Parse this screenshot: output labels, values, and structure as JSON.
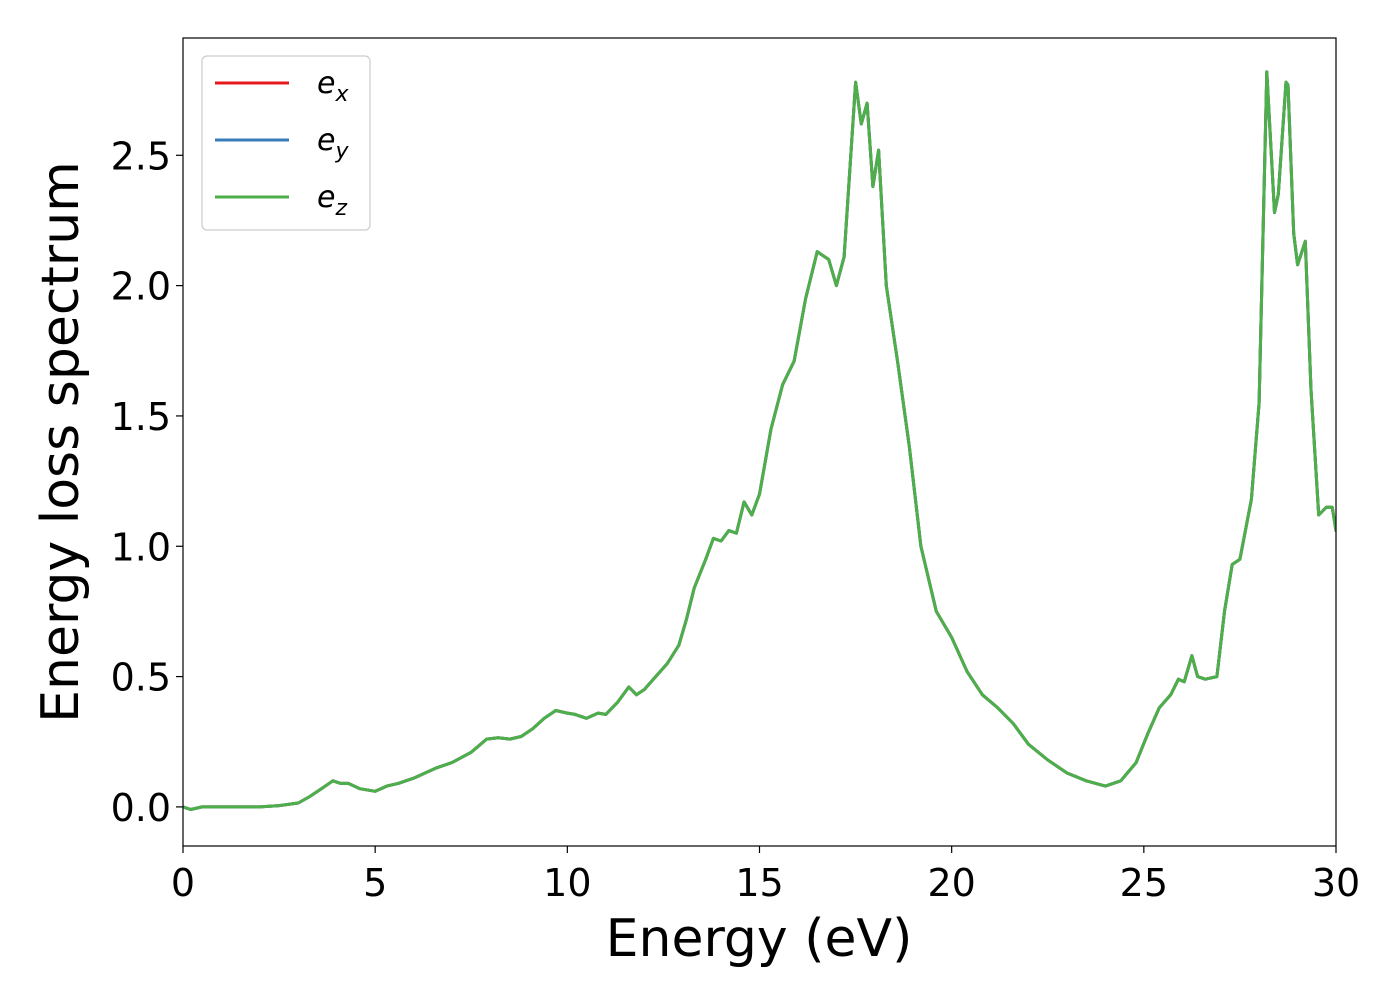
{
  "chart_data": {
    "type": "line",
    "title": "",
    "xlabel": "Energy (eV)",
    "ylabel": "Energy loss spectrum",
    "xlim": [
      0,
      30
    ],
    "ylim": [
      -0.15,
      2.95
    ],
    "xticks": [
      "0",
      "5",
      "10",
      "15",
      "20",
      "25",
      "30"
    ],
    "yticks": [
      "0.0",
      "0.5",
      "1.0",
      "1.5",
      "2.0",
      "2.5"
    ],
    "grid": false,
    "legend_position": "top-left",
    "x": [
      0,
      0.2,
      0.5,
      1,
      2,
      2.5,
      3,
      3.3,
      3.6,
      3.9,
      4.1,
      4.3,
      4.6,
      5,
      5.3,
      5.6,
      6,
      6.3,
      6.6,
      7,
      7.5,
      7.9,
      8.2,
      8.5,
      8.8,
      9.1,
      9.4,
      9.7,
      10,
      10.2,
      10.5,
      10.8,
      11,
      11.3,
      11.6,
      11.8,
      12,
      12.3,
      12.6,
      12.9,
      13.1,
      13.3,
      13.6,
      13.8,
      14,
      14.2,
      14.4,
      14.6,
      14.8,
      15,
      15.3,
      15.6,
      15.9,
      16.2,
      16.5,
      16.8,
      17,
      17.2,
      17.5,
      17.65,
      17.8,
      17.95,
      18.1,
      18.3,
      18.6,
      18.9,
      19.2,
      19.6,
      20,
      20.4,
      20.8,
      21.2,
      21.6,
      22,
      22.5,
      23,
      23.5,
      24,
      24.4,
      24.8,
      25.1,
      25.4,
      25.7,
      25.9,
      26.05,
      26.25,
      26.4,
      26.6,
      26.9,
      27.1,
      27.3,
      27.5,
      27.8,
      28.0,
      28.2,
      28.4,
      28.5,
      28.7,
      28.75,
      28.9,
      29.0,
      29.2,
      29.35,
      29.55,
      29.75,
      29.9,
      30
    ],
    "series": [
      {
        "name": "e_x",
        "label_base": "e",
        "label_sub": "x",
        "color": "#e41a1c",
        "values": [
          0,
          -0.01,
          0,
          0,
          0,
          0.005,
          0.015,
          0.04,
          0.07,
          0.1,
          0.09,
          0.09,
          0.07,
          0.06,
          0.08,
          0.09,
          0.11,
          0.13,
          0.15,
          0.17,
          0.21,
          0.26,
          0.265,
          0.26,
          0.27,
          0.3,
          0.34,
          0.37,
          0.36,
          0.355,
          0.34,
          0.36,
          0.355,
          0.4,
          0.46,
          0.43,
          0.45,
          0.5,
          0.55,
          0.62,
          0.72,
          0.84,
          0.95,
          1.03,
          1.02,
          1.06,
          1.05,
          1.17,
          1.12,
          1.2,
          1.45,
          1.62,
          1.71,
          1.95,
          2.13,
          2.1,
          2.0,
          2.11,
          2.78,
          2.62,
          2.7,
          2.38,
          2.52,
          2.0,
          1.7,
          1.38,
          1.0,
          0.75,
          0.65,
          0.52,
          0.43,
          0.38,
          0.32,
          0.24,
          0.18,
          0.13,
          0.1,
          0.08,
          0.1,
          0.17,
          0.28,
          0.38,
          0.43,
          0.49,
          0.48,
          0.58,
          0.5,
          0.49,
          0.5,
          0.75,
          0.93,
          0.95,
          1.18,
          1.55,
          2.82,
          2.28,
          2.35,
          2.78,
          2.77,
          2.2,
          2.08,
          2.17,
          1.6,
          1.12,
          1.15,
          1.15,
          1.06
        ]
      },
      {
        "name": "e_y",
        "label_base": "e",
        "label_sub": "y",
        "color": "#377eb8",
        "values": [
          0,
          -0.01,
          0,
          0,
          0,
          0.005,
          0.015,
          0.04,
          0.07,
          0.1,
          0.09,
          0.09,
          0.07,
          0.06,
          0.08,
          0.09,
          0.11,
          0.13,
          0.15,
          0.17,
          0.21,
          0.26,
          0.265,
          0.26,
          0.27,
          0.3,
          0.34,
          0.37,
          0.36,
          0.355,
          0.34,
          0.36,
          0.355,
          0.4,
          0.46,
          0.43,
          0.45,
          0.5,
          0.55,
          0.62,
          0.72,
          0.84,
          0.95,
          1.03,
          1.02,
          1.06,
          1.05,
          1.17,
          1.12,
          1.2,
          1.45,
          1.62,
          1.71,
          1.95,
          2.13,
          2.1,
          2.0,
          2.11,
          2.78,
          2.62,
          2.7,
          2.38,
          2.52,
          2.0,
          1.7,
          1.38,
          1.0,
          0.75,
          0.65,
          0.52,
          0.43,
          0.38,
          0.32,
          0.24,
          0.18,
          0.13,
          0.1,
          0.08,
          0.1,
          0.17,
          0.28,
          0.38,
          0.43,
          0.49,
          0.48,
          0.58,
          0.5,
          0.49,
          0.5,
          0.75,
          0.93,
          0.95,
          1.18,
          1.55,
          2.82,
          2.28,
          2.35,
          2.78,
          2.77,
          2.2,
          2.08,
          2.17,
          1.6,
          1.12,
          1.15,
          1.15,
          1.06
        ]
      },
      {
        "name": "e_z",
        "label_base": "e",
        "label_sub": "z",
        "color": "#4daf4a",
        "values": [
          0,
          -0.01,
          0,
          0,
          0,
          0.005,
          0.015,
          0.04,
          0.07,
          0.1,
          0.09,
          0.09,
          0.07,
          0.06,
          0.08,
          0.09,
          0.11,
          0.13,
          0.15,
          0.17,
          0.21,
          0.26,
          0.265,
          0.26,
          0.27,
          0.3,
          0.34,
          0.37,
          0.36,
          0.355,
          0.34,
          0.36,
          0.355,
          0.4,
          0.46,
          0.43,
          0.45,
          0.5,
          0.55,
          0.62,
          0.72,
          0.84,
          0.95,
          1.03,
          1.02,
          1.06,
          1.05,
          1.17,
          1.12,
          1.2,
          1.45,
          1.62,
          1.71,
          1.95,
          2.13,
          2.1,
          2.0,
          2.11,
          2.78,
          2.62,
          2.7,
          2.38,
          2.52,
          2.0,
          1.7,
          1.38,
          1.0,
          0.75,
          0.65,
          0.52,
          0.43,
          0.38,
          0.32,
          0.24,
          0.18,
          0.13,
          0.1,
          0.08,
          0.1,
          0.17,
          0.28,
          0.38,
          0.43,
          0.49,
          0.48,
          0.58,
          0.5,
          0.49,
          0.5,
          0.75,
          0.93,
          0.95,
          1.18,
          1.55,
          2.82,
          2.28,
          2.35,
          2.78,
          2.77,
          2.2,
          2.08,
          2.17,
          1.6,
          1.12,
          1.15,
          1.15,
          1.06
        ]
      }
    ]
  }
}
